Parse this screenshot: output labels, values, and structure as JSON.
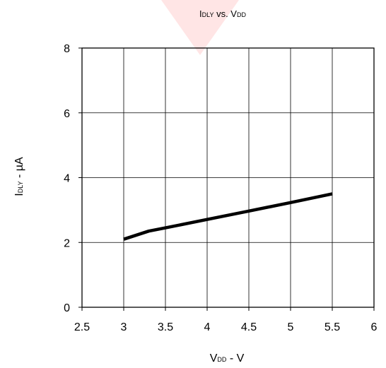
{
  "chart_data": {
    "type": "line",
    "title": {
      "main": "I",
      "sub": "DLY",
      "rest_main": " vs. V",
      "rest_sub": "DD"
    },
    "xlabel": {
      "main": "V",
      "sub": "DD",
      "rest": " - V"
    },
    "ylabel": {
      "main": "I",
      "sub": "DLY",
      "rest": " - µA"
    },
    "xlim": [
      2.5,
      6
    ],
    "ylim": [
      0,
      8
    ],
    "x_ticks": [
      2.5,
      3,
      3.5,
      4,
      4.5,
      5,
      5.5,
      6
    ],
    "x_tick_labels": [
      "2.5",
      "3",
      "3.5",
      "4",
      "4.5",
      "5",
      "5.5",
      "6"
    ],
    "y_ticks": [
      0,
      2,
      4,
      6,
      8
    ],
    "y_tick_labels": [
      "0",
      "2",
      "4",
      "6",
      "8"
    ],
    "grid": true,
    "series": [
      {
        "x": [
          3.0,
          3.3,
          3.5,
          4.0,
          4.5,
          5.0,
          5.5
        ],
        "y": [
          2.1,
          2.35,
          2.45,
          2.71,
          2.97,
          3.23,
          3.5
        ]
      }
    ],
    "colors": {
      "line": "#000000",
      "grid": "#000000",
      "watermark": "#ff2a2a"
    }
  }
}
